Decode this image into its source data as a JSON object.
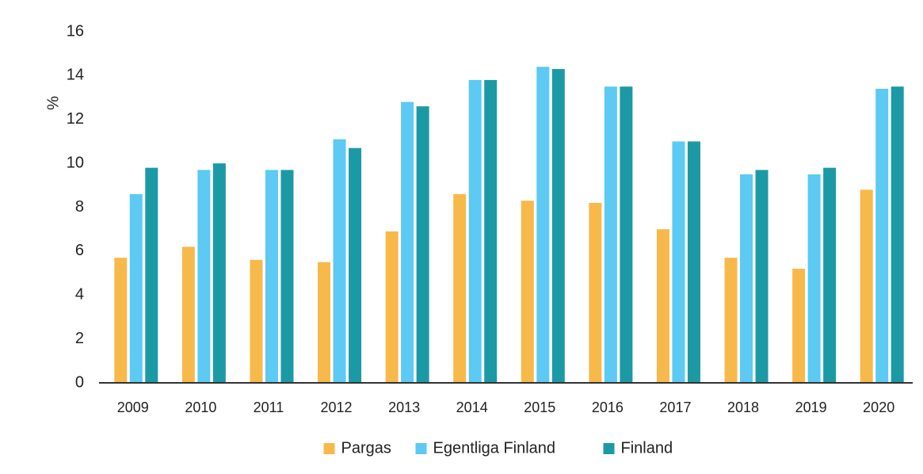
{
  "chart_data": {
    "type": "bar",
    "y_label": "%",
    "categories": [
      "2009",
      "2010",
      "2011",
      "2012",
      "2013",
      "2014",
      "2015",
      "2016",
      "2017",
      "2018",
      "2019",
      "2020"
    ],
    "series": [
      {
        "name": "Pargas",
        "color": "#f8b94b",
        "values": [
          5.7,
          6.2,
          5.6,
          5.5,
          6.9,
          8.6,
          8.3,
          8.2,
          7.0,
          5.7,
          5.2,
          8.8
        ]
      },
      {
        "name": "Egentliga Finland",
        "color": "#5ccaf2",
        "values": [
          8.6,
          9.7,
          9.7,
          11.1,
          12.8,
          13.8,
          14.4,
          13.5,
          11.0,
          9.5,
          9.5,
          13.4
        ]
      },
      {
        "name": "Finland",
        "color": "#1b9aa5",
        "values": [
          9.8,
          10.0,
          9.7,
          10.7,
          12.6,
          13.8,
          14.3,
          13.5,
          11.0,
          9.7,
          9.8,
          13.5
        ]
      }
    ],
    "ylim": [
      0,
      16
    ],
    "yticks": [
      0,
      2,
      4,
      6,
      8,
      10,
      12,
      14,
      16
    ],
    "grid": false,
    "legend": "bottom"
  }
}
